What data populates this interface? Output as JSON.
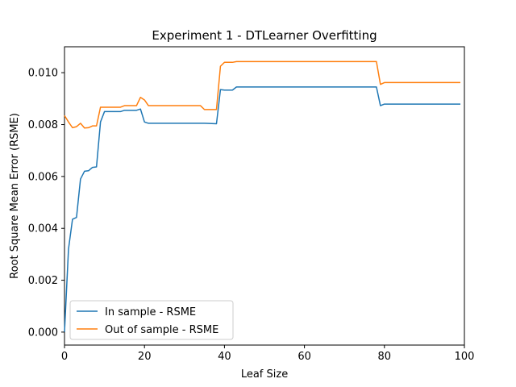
{
  "chart_data": {
    "type": "line",
    "title": "Experiment 1 - DTLearner Overfitting",
    "xlabel": "Leaf Size",
    "ylabel": "Root Square Mean Error (RSME)",
    "xlim": [
      0,
      100
    ],
    "ylim": [
      -0.0005,
      0.011
    ],
    "xticks": [
      0,
      20,
      40,
      60,
      80,
      100
    ],
    "xtick_labels": [
      "0",
      "20",
      "40",
      "60",
      "80",
      "100"
    ],
    "yticks": [
      0.0,
      0.002,
      0.004,
      0.006,
      0.008,
      0.01
    ],
    "ytick_labels": [
      "0.000",
      "0.002",
      "0.004",
      "0.006",
      "0.008",
      "0.010"
    ],
    "grid": false,
    "legend_position": "lower-left",
    "series": [
      {
        "name": "In sample - RSME",
        "color": "#1f77b4",
        "x": [
          0,
          1,
          2,
          3,
          4,
          5,
          6,
          7,
          8,
          9,
          10,
          14,
          15,
          18,
          19,
          20,
          21,
          22,
          35,
          38,
          39,
          40,
          42,
          43,
          78,
          79,
          80,
          99
        ],
        "y": [
          0.0,
          0.0032,
          0.00435,
          0.00442,
          0.0059,
          0.0062,
          0.00622,
          0.00635,
          0.00637,
          0.0081,
          0.0085,
          0.0085,
          0.00855,
          0.00855,
          0.0086,
          0.0081,
          0.00805,
          0.00805,
          0.00805,
          0.00803,
          0.00935,
          0.00933,
          0.00933,
          0.00945,
          0.00945,
          0.00873,
          0.00879,
          0.00879
        ]
      },
      {
        "name": "Out of sample - RSME",
        "color": "#ff7f0e",
        "x": [
          0,
          1,
          2,
          3,
          4,
          5,
          6,
          7,
          8,
          9,
          14,
          15,
          18,
          19,
          20,
          21,
          34,
          35,
          38,
          39,
          40,
          42,
          43,
          78,
          79,
          80,
          99
        ],
        "y": [
          0.00835,
          0.0081,
          0.00788,
          0.00792,
          0.00805,
          0.00787,
          0.00788,
          0.00795,
          0.00795,
          0.00867,
          0.00867,
          0.00873,
          0.00873,
          0.00905,
          0.00895,
          0.00873,
          0.00873,
          0.00858,
          0.00858,
          0.01025,
          0.0104,
          0.0104,
          0.01043,
          0.01043,
          0.00955,
          0.00962,
          0.00962
        ]
      }
    ]
  }
}
